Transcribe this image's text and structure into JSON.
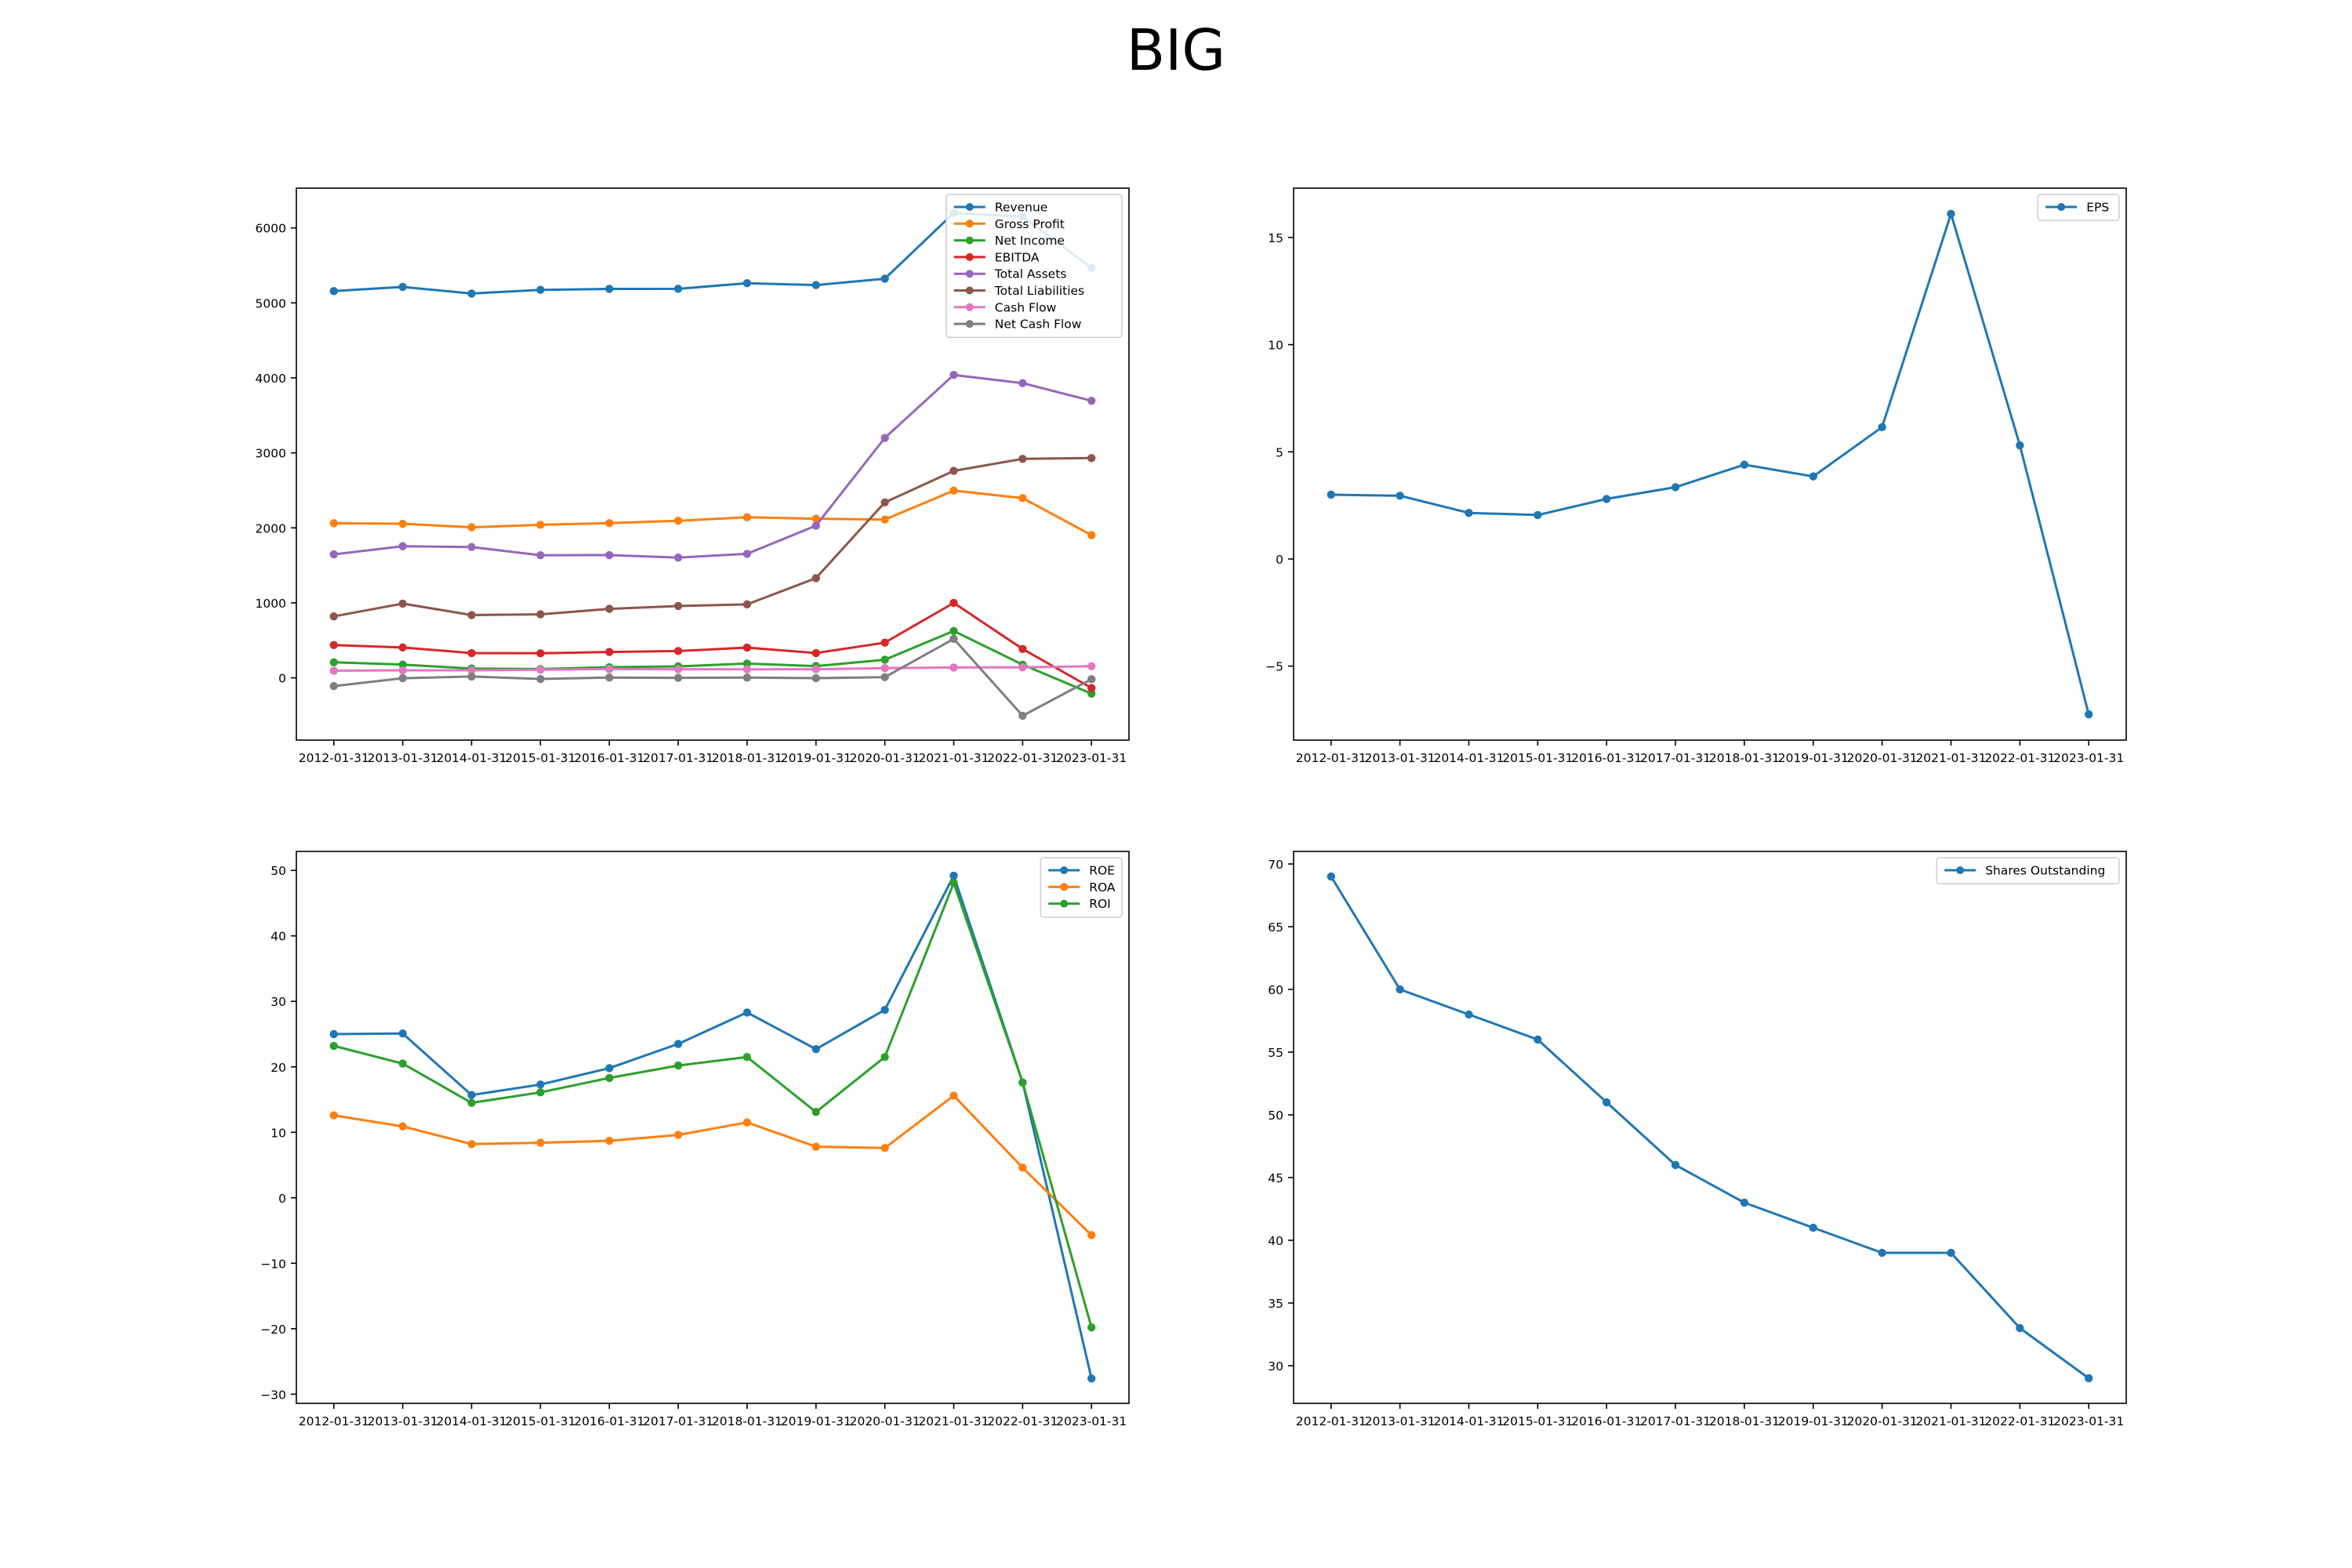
{
  "title": "BIG",
  "chart_data": [
    {
      "type": "line",
      "x": [
        "2012-01-31",
        "2013-01-31",
        "2014-01-31",
        "2015-01-31",
        "2016-01-31",
        "2017-01-31",
        "2018-01-31",
        "2019-01-31",
        "2020-01-31",
        "2021-01-31",
        "2022-01-31",
        "2023-01-31"
      ],
      "ylim": [
        -830,
        6530
      ],
      "yticks": [
        0,
        1000,
        2000,
        3000,
        4000,
        5000,
        6000
      ],
      "legend_position": "upper right",
      "grid": false,
      "series": [
        {
          "name": "Revenue",
          "color": "#1f77b4",
          "values": [
            5157,
            5213,
            5125,
            5174,
            5187,
            5188,
            5263,
            5238,
            5323,
            6199,
            6151,
            5468
          ]
        },
        {
          "name": "Gross Profit",
          "color": "#ff7f0e",
          "values": [
            2062,
            2055,
            2007,
            2041,
            2063,
            2095,
            2141,
            2122,
            2111,
            2497,
            2397,
            1903
          ]
        },
        {
          "name": "Net Income",
          "color": "#2ca02c",
          "values": [
            207,
            177,
            125,
            117,
            142,
            153,
            190,
            157,
            242,
            625,
            176,
            -210
          ]
        },
        {
          "name": "EBITDA",
          "color": "#d62728",
          "values": [
            437,
            405,
            330,
            327,
            345,
            358,
            404,
            330,
            470,
            1000,
            385,
            -135
          ]
        },
        {
          "name": "Total Assets",
          "color": "#9467bd",
          "values": [
            1647,
            1755,
            1745,
            1635,
            1637,
            1604,
            1654,
            2029,
            3200,
            4040,
            3930,
            3695
          ]
        },
        {
          "name": "Total Liabilities",
          "color": "#8c564b",
          "values": [
            820,
            990,
            837,
            847,
            920,
            958,
            980,
            1330,
            2340,
            2760,
            2920,
            2930
          ]
        },
        {
          "name": "Cash Flow",
          "color": "#e377c2",
          "values": [
            95,
            100,
            100,
            108,
            117,
            115,
            113,
            115,
            130,
            138,
            140,
            155
          ]
        },
        {
          "name": "Net Cash Flow",
          "color": "#7f7f7f",
          "values": [
            -110,
            -5,
            18,
            -15,
            4,
            0,
            3,
            -4,
            10,
            520,
            -505,
            -18
          ]
        }
      ]
    },
    {
      "type": "line",
      "x": [
        "2012-01-31",
        "2013-01-31",
        "2014-01-31",
        "2015-01-31",
        "2016-01-31",
        "2017-01-31",
        "2018-01-31",
        "2019-01-31",
        "2020-01-31",
        "2021-01-31",
        "2022-01-31",
        "2023-01-31"
      ],
      "ylim": [
        -8.45,
        17.3
      ],
      "yticks": [
        -5,
        0,
        5,
        10,
        15
      ],
      "legend_position": "upper right",
      "grid": false,
      "series": [
        {
          "name": "EPS",
          "color": "#1f77b4",
          "values": [
            3.0,
            2.95,
            2.15,
            2.05,
            2.8,
            3.35,
            4.4,
            3.85,
            6.15,
            16.1,
            5.3,
            -7.25
          ]
        }
      ]
    },
    {
      "type": "line",
      "x": [
        "2012-01-31",
        "2013-01-31",
        "2014-01-31",
        "2015-01-31",
        "2016-01-31",
        "2017-01-31",
        "2018-01-31",
        "2019-01-31",
        "2020-01-31",
        "2021-01-31",
        "2022-01-31",
        "2023-01-31"
      ],
      "ylim": [
        -31.4,
        52.9
      ],
      "yticks": [
        -30,
        -20,
        -10,
        0,
        10,
        20,
        30,
        40,
        50
      ],
      "legend_position": "upper right",
      "grid": false,
      "series": [
        {
          "name": "ROE",
          "color": "#1f77b4",
          "values": [
            25.0,
            25.1,
            15.7,
            17.3,
            19.8,
            23.5,
            28.3,
            22.7,
            28.7,
            49.2,
            17.6,
            -27.6
          ]
        },
        {
          "name": "ROA",
          "color": "#ff7f0e",
          "values": [
            12.6,
            10.9,
            8.2,
            8.4,
            8.7,
            9.6,
            11.5,
            7.8,
            7.6,
            15.6,
            4.6,
            -5.7
          ]
        },
        {
          "name": "ROI",
          "color": "#2ca02c",
          "values": [
            23.2,
            20.5,
            14.5,
            16.1,
            18.3,
            20.2,
            21.5,
            13.1,
            21.5,
            48.1,
            17.6,
            -19.8
          ]
        }
      ]
    },
    {
      "type": "line",
      "x": [
        "2012-01-31",
        "2013-01-31",
        "2014-01-31",
        "2015-01-31",
        "2016-01-31",
        "2017-01-31",
        "2018-01-31",
        "2019-01-31",
        "2020-01-31",
        "2021-01-31",
        "2022-01-31",
        "2023-01-31"
      ],
      "ylim": [
        27.0,
        71.0
      ],
      "yticks": [
        30,
        35,
        40,
        45,
        50,
        55,
        60,
        65,
        70
      ],
      "legend_position": "upper right",
      "grid": false,
      "series": [
        {
          "name": "Shares Outstanding",
          "color": "#1f77b4",
          "values": [
            69,
            60,
            58,
            56,
            51,
            46,
            43,
            41,
            39,
            39,
            33,
            29
          ]
        }
      ]
    }
  ]
}
